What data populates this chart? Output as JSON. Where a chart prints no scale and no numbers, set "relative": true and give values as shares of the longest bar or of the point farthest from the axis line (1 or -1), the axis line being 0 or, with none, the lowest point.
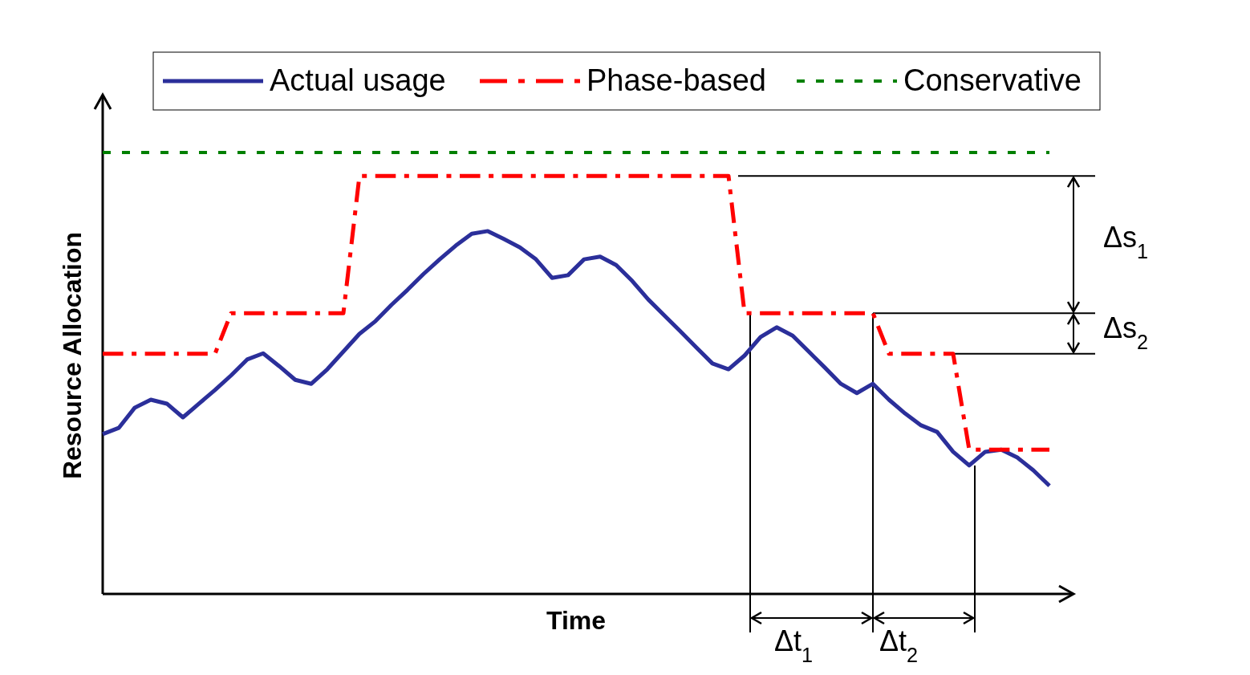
{
  "chart_data": {
    "type": "line",
    "relative": true,
    "xlabel": "Time",
    "ylabel": "Resource Allocation",
    "legend": "top",
    "marker": "none",
    "categories": [
      null,
      null,
      null,
      null,
      null,
      null,
      null,
      null,
      null,
      null,
      null,
      null,
      null,
      null,
      null,
      null,
      null,
      null,
      null,
      null,
      null,
      null,
      null,
      null,
      null,
      null,
      null,
      null,
      null,
      null,
      null,
      null,
      null,
      null,
      null,
      null,
      null,
      null,
      null,
      null,
      null,
      null,
      null,
      null,
      null,
      null,
      null,
      null,
      null,
      null,
      null,
      null,
      null,
      null,
      null,
      null,
      null,
      null,
      null,
      null
    ],
    "series": [
      {
        "name": "Actual usage",
        "color": "#2b2f9a",
        "line_style": "solid",
        "values": [
          0.362,
          0.376,
          0.422,
          0.44,
          0.431,
          0.4,
          0.431,
          0.462,
          0.495,
          0.531,
          0.545,
          0.516,
          0.485,
          0.476,
          0.509,
          0.549,
          0.589,
          0.618,
          0.655,
          0.689,
          0.725,
          0.758,
          0.789,
          0.816,
          0.822,
          0.804,
          0.785,
          0.758,
          0.716,
          0.722,
          0.758,
          0.764,
          0.745,
          0.709,
          0.667,
          0.631,
          0.595,
          0.558,
          0.522,
          0.509,
          0.54,
          0.582,
          0.604,
          0.585,
          0.549,
          0.513,
          0.476,
          0.455,
          0.476,
          0.44,
          0.409,
          0.382,
          0.367,
          0.322,
          0.291,
          0.322,
          0.327,
          0.309,
          0.28,
          0.245
        ]
      },
      {
        "name": "Phase-based",
        "color": "#ff0000",
        "line_style": "dashed",
        "values": [
          0.544,
          0.544,
          0.544,
          0.544,
          0.544,
          0.544,
          0.544,
          0.544,
          0.636,
          0.636,
          0.636,
          0.636,
          0.636,
          0.636,
          0.636,
          0.636,
          0.947,
          0.947,
          0.947,
          0.947,
          0.947,
          0.947,
          0.947,
          0.947,
          0.947,
          0.947,
          0.947,
          0.947,
          0.947,
          0.947,
          0.947,
          0.947,
          0.947,
          0.947,
          0.947,
          0.947,
          0.947,
          0.947,
          0.947,
          0.947,
          0.636,
          0.636,
          0.636,
          0.636,
          0.636,
          0.636,
          0.636,
          0.636,
          0.636,
          0.544,
          0.544,
          0.544,
          0.544,
          0.544,
          0.327,
          0.327,
          0.327,
          0.327,
          0.327,
          0.327
        ]
      },
      {
        "name": "Conservative",
        "color": "#008000",
        "line_style": "dotted",
        "values": [
          1,
          1,
          1,
          1,
          1,
          1,
          1,
          1,
          1,
          1,
          1,
          1,
          1,
          1,
          1,
          1,
          1,
          1,
          1,
          1,
          1,
          1,
          1,
          1,
          1,
          1,
          1,
          1,
          1,
          1,
          1,
          1,
          1,
          1,
          1,
          1,
          1,
          1,
          1,
          1,
          1,
          1,
          1,
          1,
          1,
          1,
          1,
          1,
          1,
          1,
          1,
          1,
          1,
          1,
          1,
          1,
          1,
          1,
          1,
          1
        ]
      }
    ],
    "annotations": [
      "Δs$_{1}$",
      "Δs$_{2}$",
      "Δt$_{1}$",
      "Δt$_{2}$"
    ]
  }
}
